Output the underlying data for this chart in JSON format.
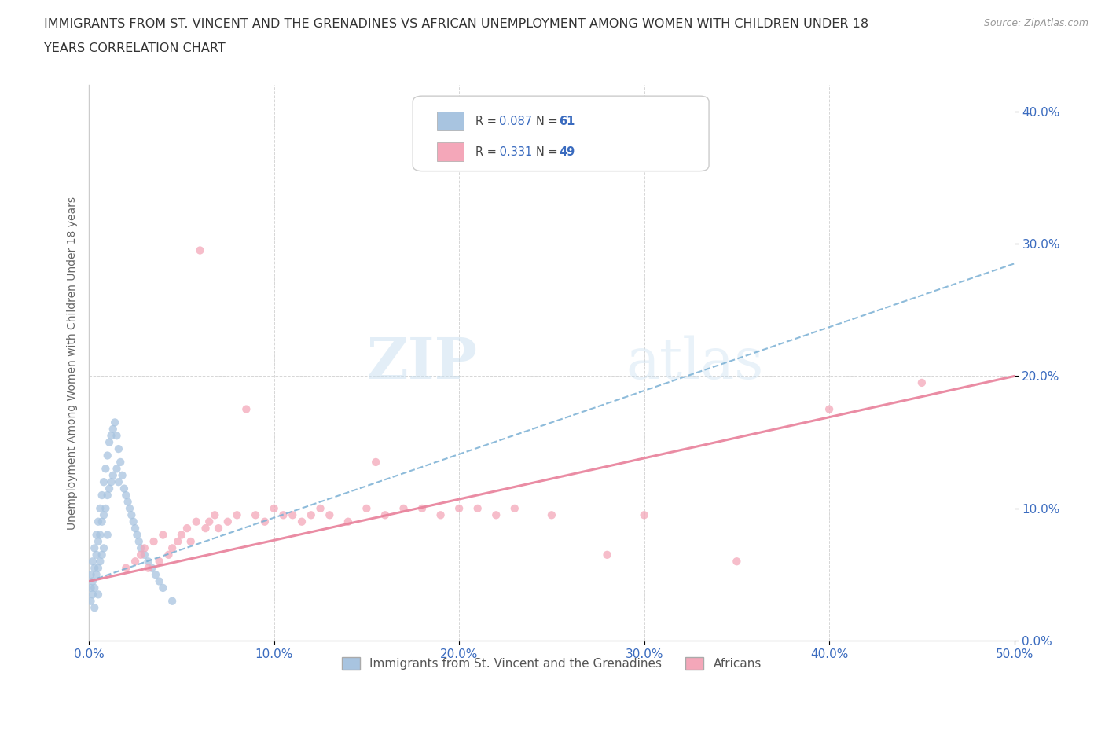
{
  "title_line1": "IMMIGRANTS FROM ST. VINCENT AND THE GRENADINES VS AFRICAN UNEMPLOYMENT AMONG WOMEN WITH CHILDREN UNDER 18",
  "title_line2": "YEARS CORRELATION CHART",
  "source": "Source: ZipAtlas.com",
  "ylabel": "Unemployment Among Women with Children Under 18 years",
  "xlim": [
    0.0,
    0.5
  ],
  "ylim": [
    0.0,
    0.42
  ],
  "xtick_vals": [
    0.0,
    0.1,
    0.2,
    0.3,
    0.4,
    0.5
  ],
  "xtick_labels": [
    "0.0%",
    "10.0%",
    "20.0%",
    "30.0%",
    "40.0%",
    "50.0%"
  ],
  "ytick_vals": [
    0.0,
    0.1,
    0.2,
    0.3,
    0.4
  ],
  "ytick_labels": [
    "0.0%",
    "10.0%",
    "20.0%",
    "30.0%",
    "40.0%"
  ],
  "legend_label1": "Immigrants from St. Vincent and the Grenadines",
  "legend_label2": "Africans",
  "r1": 0.087,
  "n1": 61,
  "r2": 0.331,
  "n2": 49,
  "color1": "#a8c4e0",
  "color2": "#f4a7b9",
  "line1_color": "#7ab0d4",
  "line2_color": "#e8809a",
  "watermark_zip": "ZIP",
  "watermark_atlas": "atlas",
  "scatter1_x": [
    0.001,
    0.001,
    0.001,
    0.002,
    0.002,
    0.002,
    0.003,
    0.003,
    0.003,
    0.003,
    0.004,
    0.004,
    0.004,
    0.005,
    0.005,
    0.005,
    0.005,
    0.006,
    0.006,
    0.006,
    0.007,
    0.007,
    0.007,
    0.008,
    0.008,
    0.008,
    0.009,
    0.009,
    0.01,
    0.01,
    0.01,
    0.011,
    0.011,
    0.012,
    0.012,
    0.013,
    0.013,
    0.014,
    0.015,
    0.015,
    0.016,
    0.016,
    0.017,
    0.018,
    0.019,
    0.02,
    0.021,
    0.022,
    0.023,
    0.024,
    0.025,
    0.026,
    0.027,
    0.028,
    0.03,
    0.032,
    0.034,
    0.036,
    0.038,
    0.04,
    0.045
  ],
  "scatter1_y": [
    0.05,
    0.04,
    0.03,
    0.06,
    0.045,
    0.035,
    0.07,
    0.055,
    0.04,
    0.025,
    0.08,
    0.065,
    0.05,
    0.09,
    0.075,
    0.055,
    0.035,
    0.1,
    0.08,
    0.06,
    0.11,
    0.09,
    0.065,
    0.12,
    0.095,
    0.07,
    0.13,
    0.1,
    0.14,
    0.11,
    0.08,
    0.15,
    0.115,
    0.155,
    0.12,
    0.16,
    0.125,
    0.165,
    0.155,
    0.13,
    0.145,
    0.12,
    0.135,
    0.125,
    0.115,
    0.11,
    0.105,
    0.1,
    0.095,
    0.09,
    0.085,
    0.08,
    0.075,
    0.07,
    0.065,
    0.06,
    0.055,
    0.05,
    0.045,
    0.04,
    0.03
  ],
  "scatter2_x": [
    0.02,
    0.025,
    0.028,
    0.03,
    0.032,
    0.035,
    0.038,
    0.04,
    0.043,
    0.045,
    0.048,
    0.05,
    0.053,
    0.055,
    0.058,
    0.06,
    0.063,
    0.065,
    0.068,
    0.07,
    0.075,
    0.08,
    0.085,
    0.09,
    0.095,
    0.1,
    0.105,
    0.11,
    0.115,
    0.12,
    0.125,
    0.13,
    0.14,
    0.15,
    0.155,
    0.16,
    0.17,
    0.18,
    0.19,
    0.2,
    0.21,
    0.22,
    0.23,
    0.25,
    0.28,
    0.3,
    0.35,
    0.4,
    0.45
  ],
  "scatter2_y": [
    0.055,
    0.06,
    0.065,
    0.07,
    0.055,
    0.075,
    0.06,
    0.08,
    0.065,
    0.07,
    0.075,
    0.08,
    0.085,
    0.075,
    0.09,
    0.295,
    0.085,
    0.09,
    0.095,
    0.085,
    0.09,
    0.095,
    0.175,
    0.095,
    0.09,
    0.1,
    0.095,
    0.095,
    0.09,
    0.095,
    0.1,
    0.095,
    0.09,
    0.1,
    0.135,
    0.095,
    0.1,
    0.1,
    0.095,
    0.1,
    0.1,
    0.095,
    0.1,
    0.095,
    0.065,
    0.095,
    0.06,
    0.175,
    0.195
  ],
  "line1_x0": 0.0,
  "line1_y0": 0.045,
  "line1_x1": 0.5,
  "line1_y1": 0.285,
  "line2_x0": 0.0,
  "line2_y0": 0.045,
  "line2_x1": 0.5,
  "line2_y1": 0.2
}
